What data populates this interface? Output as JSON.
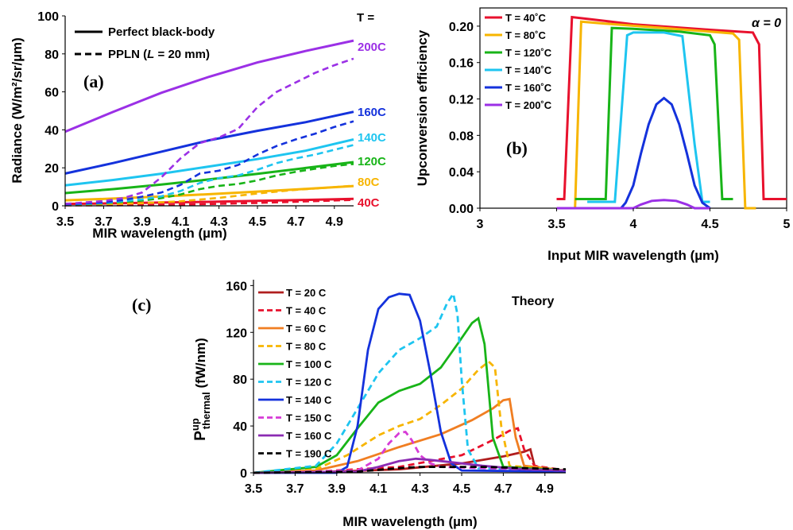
{
  "chart_data": [
    {
      "id": "a",
      "type": "line",
      "panel_label": "(a)",
      "xlabel": "MIR wavelength (µm)",
      "ylabel": "Radiance (W/m²/sr/µm)",
      "xlim": [
        3.5,
        5.0
      ],
      "ylim": [
        0,
        100
      ],
      "xticks": [
        "3.5",
        "3.7",
        "3.9",
        "4.1",
        "4.3",
        "4.5",
        "4.7",
        "4.9"
      ],
      "yticks": [
        "0",
        "20",
        "40",
        "60",
        "80",
        "100"
      ],
      "legend": {
        "entries": [
          {
            "text": "Perfect black-body",
            "style": "solid"
          },
          {
            "text_pre": "PPLN (",
            "text_italic": "L",
            "text_post": " = 20 mm)",
            "style": "dashed"
          }
        ]
      },
      "temp_header": "T =",
      "series": [
        {
          "name": "40C",
          "color": "#e8112d",
          "solid": {
            "x": [
              3.5,
              3.75,
              4.0,
              4.25,
              4.5,
              4.75,
              5.0
            ],
            "y": [
              1.0,
              1.3,
              1.7,
              2.1,
              2.6,
              3.1,
              3.7
            ]
          },
          "dashed": {
            "x": [
              3.5,
              3.75,
              4.0,
              4.25,
              4.5,
              4.75,
              5.0
            ],
            "y": [
              0.2,
              0.3,
              0.5,
              0.9,
              1.5,
              2.3,
              3.1
            ]
          }
        },
        {
          "name": "80C",
          "color": "#f7b500",
          "solid": {
            "x": [
              3.5,
              3.75,
              4.0,
              4.25,
              4.5,
              4.75,
              5.0
            ],
            "y": [
              2.9,
              3.8,
              4.9,
              6.1,
              7.5,
              8.9,
              10.4
            ]
          },
          "dashed": {
            "x": [
              3.5,
              3.7,
              3.9,
              4.1,
              4.3,
              4.5,
              4.7,
              4.9,
              5.0
            ],
            "y": [
              0.5,
              0.8,
              1.4,
              2.4,
              4.2,
              6.5,
              8.4,
              9.8,
              10.6
            ]
          }
        },
        {
          "name": "120C",
          "color": "#18b418",
          "solid": {
            "x": [
              3.5,
              3.75,
              4.0,
              4.25,
              4.5,
              4.75,
              5.0
            ],
            "y": [
              6.7,
              8.8,
              11.2,
              13.9,
              16.8,
              19.9,
              23.0
            ]
          },
          "dashed": {
            "x": [
              3.5,
              3.7,
              3.9,
              4.0,
              4.1,
              4.2,
              4.3,
              4.4,
              4.5,
              4.6,
              4.7,
              4.8,
              4.9,
              5.0
            ],
            "y": [
              0.6,
              1.3,
              2.7,
              4.0,
              6.0,
              8.8,
              10.5,
              11.5,
              13.4,
              16.0,
              17.9,
              19.5,
              21.0,
              22.0
            ]
          }
        },
        {
          "name": "140C",
          "color": "#1ec5f0",
          "solid": {
            "x": [
              3.5,
              3.75,
              4.0,
              4.25,
              4.5,
              4.75,
              5.0
            ],
            "y": [
              10.8,
              13.6,
              16.9,
              20.7,
              24.6,
              29.0,
              35.0
            ]
          },
          "dashed": {
            "x": [
              3.5,
              3.7,
              3.9,
              4.0,
              4.1,
              4.2,
              4.3,
              4.4,
              4.5,
              4.6,
              4.7,
              4.8,
              4.9,
              5.0
            ],
            "y": [
              0.6,
              1.5,
              3.4,
              5.0,
              7.8,
              12.0,
              14.6,
              16.0,
              19.0,
              22.5,
              25.0,
              27.0,
              29.5,
              32.0
            ]
          }
        },
        {
          "name": "160C",
          "color": "#1432dc",
          "solid": {
            "x": [
              3.5,
              3.75,
              4.0,
              4.25,
              4.5,
              4.75,
              5.0
            ],
            "y": [
              17.0,
              22.5,
              28.5,
              34.5,
              39.5,
              44.0,
              49.5
            ]
          },
          "dashed": {
            "x": [
              3.5,
              3.7,
              3.8,
              3.9,
              4.0,
              4.1,
              4.2,
              4.3,
              4.4,
              4.5,
              4.6,
              4.7,
              4.8,
              4.9,
              5.0
            ],
            "y": [
              0.8,
              1.8,
              3.0,
              4.8,
              7.0,
              11.0,
              17.0,
              18.5,
              21.5,
              27.0,
              31.5,
              35.0,
              38.0,
              41.5,
              44.5
            ]
          }
        },
        {
          "name": "200C",
          "color": "#9b30e6",
          "solid": {
            "x": [
              3.5,
              3.75,
              4.0,
              4.25,
              4.5,
              4.75,
              5.0
            ],
            "y": [
              39.0,
              49.5,
              59.5,
              68.0,
              75.5,
              81.5,
              87.0
            ]
          },
          "dashed": {
            "x": [
              3.5,
              3.7,
              3.8,
              3.9,
              4.0,
              4.1,
              4.2,
              4.3,
              4.4,
              4.5,
              4.6,
              4.7,
              4.8,
              4.9,
              5.0
            ],
            "y": [
              1.0,
              2.5,
              4.0,
              7.0,
              15.0,
              25.0,
              33.0,
              36.0,
              40.5,
              52.0,
              60.0,
              65.0,
              70.0,
              74.0,
              77.5
            ]
          }
        }
      ]
    },
    {
      "id": "b",
      "type": "line",
      "panel_label": "(b)",
      "annotation_alpha": "α = 0",
      "xlabel": "Input MIR wavelength (µm)",
      "ylabel": "Upconversion efficiency",
      "xlim": [
        3.0,
        5.0
      ],
      "ylim": [
        0,
        0.22
      ],
      "xticks": [
        "3",
        "3.5",
        "4",
        "4.5",
        "5"
      ],
      "yticks": [
        "0.00",
        "0.04",
        "0.08",
        "0.12",
        "0.16",
        "0.20"
      ],
      "series": [
        {
          "name": "T = 40˚C",
          "color": "#e8112d",
          "x": [
            3.5,
            3.55,
            3.6,
            3.7,
            4.0,
            4.5,
            4.78,
            4.82,
            4.85,
            4.9,
            5.0
          ],
          "y": [
            0.01,
            0.01,
            0.21,
            0.208,
            0.202,
            0.196,
            0.193,
            0.18,
            0.01,
            0.01,
            0.01
          ]
        },
        {
          "name": "T = 80˚C",
          "color": "#f7b500",
          "x": [
            3.55,
            3.62,
            3.66,
            3.8,
            4.2,
            4.65,
            4.69,
            4.73,
            4.8
          ],
          "y": [
            0.0,
            0.0,
            0.205,
            0.203,
            0.198,
            0.192,
            0.185,
            0.0,
            0.0
          ]
        },
        {
          "name": "T = 120˚C",
          "color": "#18b418",
          "x": [
            3.62,
            3.7,
            3.82,
            3.86,
            4.0,
            4.3,
            4.5,
            4.53,
            4.58,
            4.65
          ],
          "y": [
            0.01,
            0.01,
            0.01,
            0.198,
            0.197,
            0.194,
            0.19,
            0.18,
            0.01,
            0.01
          ]
        },
        {
          "name": "T = 140˚C",
          "color": "#1ec5f0",
          "x": [
            3.7,
            3.8,
            3.88,
            3.96,
            4.0,
            4.2,
            4.32,
            4.4,
            4.45,
            4.5
          ],
          "y": [
            0.007,
            0.007,
            0.007,
            0.19,
            0.193,
            0.193,
            0.189,
            0.07,
            0.007,
            0.007
          ]
        },
        {
          "name": "T = 160˚C",
          "color": "#1432dc",
          "x": [
            3.92,
            3.95,
            4.0,
            4.05,
            4.1,
            4.15,
            4.2,
            4.25,
            4.3,
            4.35,
            4.4,
            4.45,
            4.5
          ],
          "y": [
            0.0,
            0.006,
            0.025,
            0.06,
            0.092,
            0.114,
            0.121,
            0.114,
            0.092,
            0.06,
            0.025,
            0.006,
            0.0
          ]
        },
        {
          "name": "T = 200˚C",
          "color": "#9b30e6",
          "x": [
            3.5,
            4.0,
            4.05,
            4.12,
            4.2,
            4.28,
            4.35,
            4.4,
            4.5
          ],
          "y": [
            0.0,
            0.0,
            0.004,
            0.008,
            0.009,
            0.008,
            0.004,
            0.0,
            0.0
          ]
        }
      ]
    },
    {
      "id": "c",
      "type": "line",
      "panel_label": "(c)",
      "annotation": "Theory",
      "xlabel": "MIR wavelength (µm)",
      "ylabel_main": "P",
      "ylabel_sup": "up",
      "ylabel_sub": "thermal",
      "ylabel_unit": " (fW/nm)",
      "xlim": [
        3.5,
        5.0
      ],
      "ylim": [
        0,
        165
      ],
      "xticks": [
        "3.5",
        "3.7",
        "3.9",
        "4.1",
        "4.3",
        "4.5",
        "4.7",
        "4.9"
      ],
      "yticks": [
        "0",
        "40",
        "80",
        "120",
        "160"
      ],
      "series": [
        {
          "name": "T = 20 C",
          "color": "#b01e1e",
          "dash": false,
          "x": [
            3.5,
            3.8,
            4.2,
            4.5,
            4.7,
            4.8,
            4.83,
            4.85,
            4.9,
            5.0
          ],
          "y": [
            0,
            0.5,
            3,
            8,
            14,
            18,
            20,
            6,
            3,
            2
          ]
        },
        {
          "name": "T = 40 C",
          "color": "#e8112d",
          "dash": true,
          "x": [
            3.5,
            3.8,
            4.2,
            4.5,
            4.65,
            4.73,
            4.77,
            4.8,
            4.85,
            5.0
          ],
          "y": [
            0,
            1,
            5,
            15,
            28,
            36,
            38,
            20,
            6,
            2
          ]
        },
        {
          "name": "T = 60 C",
          "color": "#f07e22",
          "dash": false,
          "x": [
            3.5,
            3.8,
            4.0,
            4.2,
            4.4,
            4.55,
            4.65,
            4.7,
            4.73,
            4.76,
            4.8,
            5.0
          ],
          "y": [
            0,
            2,
            10,
            22,
            33,
            45,
            55,
            62,
            63,
            30,
            6,
            2
          ]
        },
        {
          "name": "T = 80 C",
          "color": "#f7b500",
          "dash": true,
          "x": [
            3.5,
            3.8,
            3.95,
            4.1,
            4.2,
            4.3,
            4.4,
            4.5,
            4.58,
            4.63,
            4.66,
            4.69,
            4.73,
            5.0
          ],
          "y": [
            0,
            3,
            15,
            32,
            40,
            46,
            58,
            72,
            88,
            95,
            90,
            40,
            6,
            2
          ]
        },
        {
          "name": "T = 100 C",
          "color": "#18b418",
          "dash": false,
          "x": [
            3.5,
            3.8,
            3.9,
            4.0,
            4.1,
            4.2,
            4.3,
            4.4,
            4.48,
            4.55,
            4.58,
            4.61,
            4.65,
            4.7,
            5.0
          ],
          "y": [
            0,
            5,
            15,
            38,
            60,
            70,
            76,
            90,
            110,
            128,
            132,
            110,
            30,
            5,
            2
          ]
        },
        {
          "name": "T = 120 C",
          "color": "#1ec5f0",
          "dash": true,
          "x": [
            3.5,
            3.8,
            3.9,
            4.0,
            4.1,
            4.2,
            4.3,
            4.38,
            4.43,
            4.46,
            4.48,
            4.5,
            4.53,
            4.58,
            5.0
          ],
          "y": [
            0,
            6,
            25,
            55,
            85,
            105,
            115,
            125,
            145,
            153,
            135,
            80,
            20,
            4,
            2
          ]
        },
        {
          "name": "T = 140 C",
          "color": "#1432dc",
          "dash": false,
          "x": [
            3.5,
            3.9,
            3.95,
            4.0,
            4.05,
            4.1,
            4.15,
            4.2,
            4.25,
            4.3,
            4.35,
            4.4,
            4.45,
            4.5,
            5.0
          ],
          "y": [
            0,
            0,
            5,
            40,
            105,
            140,
            150,
            153,
            152,
            130,
            85,
            35,
            8,
            2,
            1
          ]
        },
        {
          "name": "T = 150 C",
          "color": "#d63bd6",
          "dash": true,
          "x": [
            3.5,
            4.0,
            4.1,
            4.15,
            4.2,
            4.23,
            4.26,
            4.3,
            4.35,
            4.4,
            5.0
          ],
          "y": [
            0,
            2,
            12,
            25,
            34,
            35,
            28,
            15,
            8,
            5,
            2
          ]
        },
        {
          "name": "T = 160 C",
          "color": "#8b2bb3",
          "dash": false,
          "x": [
            3.5,
            4.0,
            4.1,
            4.2,
            4.28,
            4.35,
            4.45,
            4.6,
            4.8,
            5.0
          ],
          "y": [
            0,
            1,
            5,
            10,
            12,
            11,
            9,
            6,
            3,
            2
          ]
        },
        {
          "name": "T = 190 C",
          "color": "#000000",
          "dash": true,
          "x": [
            3.5,
            4.0,
            4.2,
            4.3,
            4.4,
            4.6,
            4.8,
            5.0
          ],
          "y": [
            0,
            1,
            4,
            5,
            5,
            5,
            4,
            3
          ]
        }
      ]
    }
  ]
}
